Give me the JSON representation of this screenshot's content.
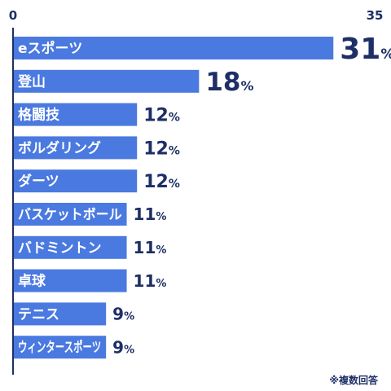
{
  "chart_data": {
    "type": "bar",
    "orientation": "horizontal",
    "axis_min_label": "0",
    "axis_max_label": "35",
    "xlim": [
      0,
      35
    ],
    "categories": [
      "eスポーツ",
      "登山",
      "格闘技",
      "ボルダリング",
      "ダーツ",
      "バスケットボール",
      "バドミントン",
      "卓球",
      "テニス",
      "ウィンタースポーツ"
    ],
    "values": [
      31,
      18,
      12,
      12,
      12,
      11,
      11,
      11,
      9,
      9
    ],
    "value_suffix": "%",
    "bar_color": "#4a79e0",
    "label_color": "#1e2f66",
    "axis_color": "#1e2f66"
  },
  "footnote": "※複数回答"
}
